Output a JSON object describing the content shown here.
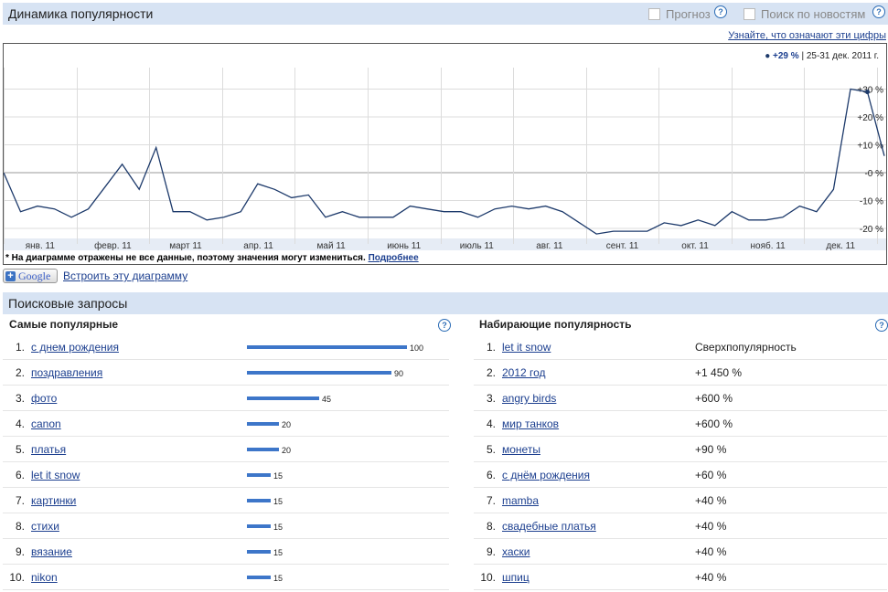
{
  "trend": {
    "title": "Динамика популярности",
    "forecast_label": "Прогноз",
    "news_label": "Поиск по новостям",
    "what_numbers_link": "Узнайте, что означают эти цифры",
    "legend_value": "+29 %",
    "legend_range": "| 25-31 дек. 2011 г.",
    "disclaimer_text": "* На диаграмме отражены не все данные, поэтому значения могут измениться.",
    "disclaimer_link": "Подробнее",
    "google_label": "Google",
    "embed_link": "Встроить эту диаграмму"
  },
  "chart_data": {
    "type": "line",
    "ylabel": "",
    "y_ticks": [
      "+30 %",
      "+20 %",
      "+10 %",
      "-0 %",
      "-10 %",
      "-20 %"
    ],
    "y_tick_values": [
      30,
      20,
      10,
      0,
      -10,
      -20
    ],
    "x_labels": [
      "янв. 11",
      "февр. 11",
      "март 11",
      "апр. 11",
      "май 11",
      "июнь 11",
      "июль 11",
      "авг. 11",
      "сент. 11",
      "окт. 11",
      "нояб. 11",
      "дек. 11"
    ],
    "series": [
      {
        "color": "#1d3a6b",
        "values": [
          0,
          -14,
          -12,
          -13,
          -16,
          -13,
          -5,
          3,
          -6,
          9,
          -14,
          -14,
          -17,
          -16,
          -14,
          -4,
          -6,
          -9,
          -8,
          -16,
          -14,
          -16,
          -16,
          -16,
          -12,
          -13,
          -14,
          -14,
          -16,
          -13,
          -12,
          -13,
          -12,
          -14,
          -18,
          -22,
          -21,
          -21,
          -21,
          -18,
          -19,
          -17,
          -19,
          -14,
          -17,
          -17,
          -16,
          -12,
          -14,
          -6,
          30,
          29,
          6
        ]
      }
    ],
    "grid": true
  },
  "queries": {
    "title": "Поисковые запросы",
    "top_title": "Самые популярные",
    "rising_title": "Набирающие популярность",
    "top": [
      {
        "rank": "1.",
        "term": "с днем рождения",
        "value": 100
      },
      {
        "rank": "2.",
        "term": "поздравления",
        "value": 90
      },
      {
        "rank": "3.",
        "term": "фото",
        "value": 45
      },
      {
        "rank": "4.",
        "term": "canon",
        "value": 20
      },
      {
        "rank": "5.",
        "term": "платья",
        "value": 20
      },
      {
        "rank": "6.",
        "term": "let it snow",
        "value": 15
      },
      {
        "rank": "7.",
        "term": "картинки",
        "value": 15
      },
      {
        "rank": "8.",
        "term": "стихи",
        "value": 15
      },
      {
        "rank": "9.",
        "term": "вязание",
        "value": 15
      },
      {
        "rank": "10.",
        "term": "nikon",
        "value": 15
      }
    ],
    "rising": [
      {
        "rank": "1.",
        "term": "let it snow",
        "change": "Сверхпопулярность"
      },
      {
        "rank": "2.",
        "term": "2012 год",
        "change": "+1 450 %"
      },
      {
        "rank": "3.",
        "term": "angry birds",
        "change": "+600 %"
      },
      {
        "rank": "4.",
        "term": "мир танков",
        "change": "+600 %"
      },
      {
        "rank": "5.",
        "term": "монеты",
        "change": "+90 %"
      },
      {
        "rank": "6.",
        "term": "с днём рождения",
        "change": "+60 %"
      },
      {
        "rank": "7.",
        "term": "mamba",
        "change": "+40 %"
      },
      {
        "rank": "8.",
        "term": "свадебные платья",
        "change": "+40 %"
      },
      {
        "rank": "9.",
        "term": "хаски",
        "change": "+40 %"
      },
      {
        "rank": "10.",
        "term": "шпиц",
        "change": "+40 %"
      }
    ]
  }
}
